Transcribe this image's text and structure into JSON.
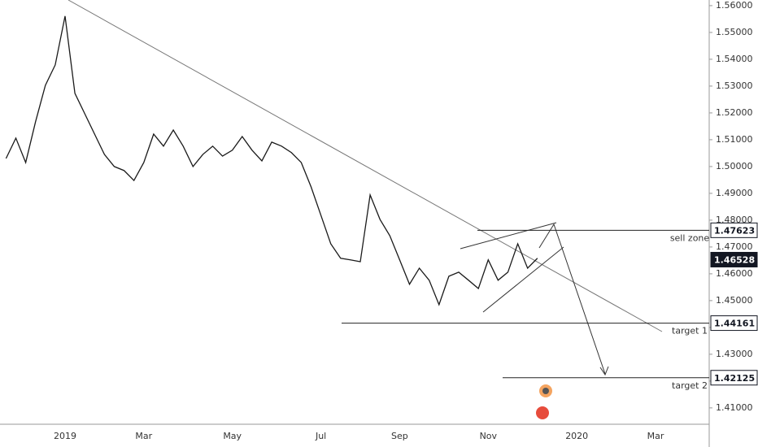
{
  "chart_data": {
    "type": "line",
    "color": "#1a1a1a",
    "categories": [
      null,
      null,
      null,
      null,
      null,
      null,
      "2019",
      null,
      null,
      null,
      null,
      null,
      null,
      null,
      "Mar",
      null,
      null,
      null,
      null,
      null,
      null,
      null,
      null,
      "May",
      null,
      null,
      null,
      null,
      null,
      null,
      null,
      null,
      "Jul",
      null,
      null,
      null,
      null,
      null,
      null,
      null,
      "Sep",
      null,
      null,
      null,
      null,
      null,
      null,
      null,
      null,
      "Nov",
      null,
      null,
      null,
      null,
      null,
      null,
      null,
      null,
      "2020",
      null,
      null,
      null,
      null,
      null,
      null,
      null,
      "Mar",
      null,
      null,
      null,
      null,
      null
    ],
    "values": [
      1.503,
      1.5106,
      1.5015,
      1.5167,
      1.5303,
      1.5379,
      1.5561,
      1.5273,
      1.5197,
      1.5121,
      1.5045,
      1.5,
      1.4985,
      1.4948,
      1.5015,
      1.5121,
      1.5076,
      1.5136,
      1.5076,
      1.5,
      1.5045,
      1.5076,
      1.5039,
      1.5061,
      1.5112,
      1.5061,
      1.5021,
      1.5091,
      1.5076,
      1.5052,
      1.5015,
      1.4924,
      1.4818,
      1.4712,
      1.4658,
      1.4652,
      1.4645,
      1.4894,
      1.4803,
      1.4742,
      1.4652,
      1.4561,
      1.4621,
      1.4576,
      1.4485,
      1.4591,
      1.4606,
      1.4576,
      1.4545,
      1.4652,
      1.4576,
      1.4606,
      1.4712,
      1.4621,
      1.4658,
      null,
      null,
      null,
      null,
      null,
      null,
      null,
      null,
      null,
      null,
      null,
      null,
      null,
      null,
      null,
      null,
      null
    ],
    "ylim": [
      1.4039,
      1.5621
    ],
    "yticks": [
      {
        "value": 1.41,
        "label": "1.41000"
      },
      {
        "value": 1.42,
        "label": "1.42000"
      },
      {
        "value": 1.43,
        "label": "1.43000"
      },
      {
        "value": 1.44,
        "label": "1.44000"
      },
      {
        "value": 1.45,
        "label": "1.45000"
      },
      {
        "value": 1.46,
        "label": "1.46000"
      },
      {
        "value": 1.47,
        "label": "1.47000"
      },
      {
        "value": 1.48,
        "label": "1.48000"
      },
      {
        "value": 1.49,
        "label": "1.49000"
      },
      {
        "value": 1.5,
        "label": "1.50000"
      },
      {
        "value": 1.51,
        "label": "1.51000"
      },
      {
        "value": 1.52,
        "label": "1.52000"
      },
      {
        "value": 1.53,
        "label": "1.53000"
      },
      {
        "value": 1.54,
        "label": "1.54000"
      },
      {
        "value": 1.55,
        "label": "1.55000"
      },
      {
        "value": 1.56,
        "label": "1.56000"
      }
    ],
    "levels": [
      {
        "name": "sell zone",
        "value": 1.47623
      },
      {
        "value": 1.46528
      },
      {
        "name": "target 1",
        "value": 1.44161
      },
      {
        "name": "target 2",
        "value": 1.42125
      }
    ]
  }
}
